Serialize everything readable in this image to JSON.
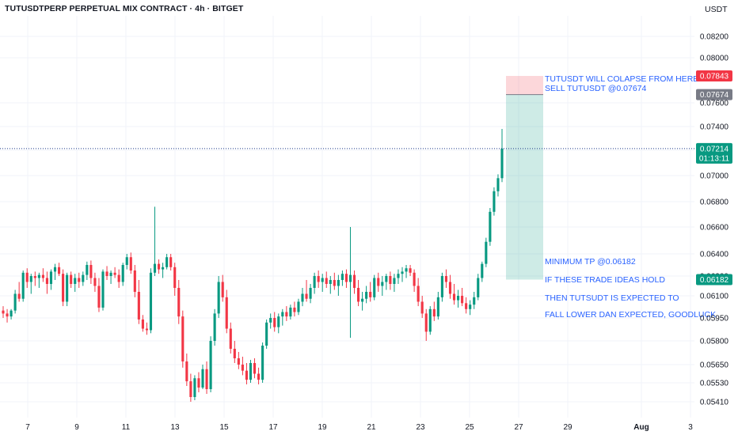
{
  "header": {
    "title": "TUTUSDTPERP PERPETUAL MIX CONTRACT · 4h · BITGET",
    "quote_unit": "USDT"
  },
  "chart_data": {
    "type": "candlestick",
    "symbol": "TUTUSDTPERP",
    "exchange": "BITGET",
    "timeframe": "4h",
    "y_axis_ticks": [
      "0.08200",
      "0.08000",
      "0.07600",
      "0.07400",
      "0.07200",
      "0.07000",
      "0.06800",
      "0.06600",
      "0.06400",
      "0.06200",
      "0.06100",
      "0.05950",
      "0.05800",
      "0.05650",
      "0.05530",
      "0.05410"
    ],
    "x_axis_ticks": [
      "7",
      "9",
      "11",
      "13",
      "15",
      "17",
      "19",
      "21",
      "23",
      "25",
      "27",
      "29",
      "Aug",
      "3"
    ],
    "current_price": "0.07214",
    "countdown": "01:13:11",
    "price_labels": [
      {
        "value": "0.07843",
        "color": "#f23645"
      },
      {
        "value": "0.07674",
        "color": "#787b86"
      },
      {
        "value": "0.07214",
        "color": "#089981"
      },
      {
        "value": "0.06182",
        "color": "#089981"
      }
    ],
    "position": {
      "side": "short",
      "entry": 0.07674,
      "stop": 0.07843,
      "target": 0.06182
    },
    "annotations": [
      "TUTUSDT WILL COLAPSE FROM HERE",
      "SELL TUTUSDT @0.07674",
      "MINIMUM TP @0.06182",
      "IF THESE TRADE IDEAS HOLD",
      "THEN TUTSUDT IS EXPECTED TO",
      "FALL LOWER DAN EXPECTED, GOODLUCK"
    ],
    "candles": [
      [
        0.06,
        0.0603,
        0.0595,
        0.0598
      ],
      [
        0.0598,
        0.0601,
        0.0592,
        0.0596
      ],
      [
        0.0596,
        0.0601,
        0.0594,
        0.06
      ],
      [
        0.06,
        0.0613,
        0.0598,
        0.0611
      ],
      [
        0.0611,
        0.0617,
        0.0606,
        0.0608
      ],
      [
        0.0608,
        0.0625,
        0.0606,
        0.0623
      ],
      [
        0.0623,
        0.0627,
        0.0614,
        0.0617
      ],
      [
        0.0617,
        0.0622,
        0.0611,
        0.062
      ],
      [
        0.062,
        0.0624,
        0.0615,
        0.0619
      ],
      [
        0.0619,
        0.0623,
        0.0614,
        0.0621
      ],
      [
        0.0621,
        0.0627,
        0.0617,
        0.0619
      ],
      [
        0.0619,
        0.0624,
        0.0611,
        0.0616
      ],
      [
        0.0616,
        0.0626,
        0.0613,
        0.0624
      ],
      [
        0.0624,
        0.0631,
        0.0618,
        0.0628
      ],
      [
        0.0628,
        0.0632,
        0.062,
        0.0622
      ],
      [
        0.0622,
        0.0626,
        0.0603,
        0.0606
      ],
      [
        0.0606,
        0.0623,
        0.0603,
        0.0621
      ],
      [
        0.0621,
        0.0624,
        0.0614,
        0.0616
      ],
      [
        0.0616,
        0.0622,
        0.0612,
        0.0619
      ],
      [
        0.0619,
        0.0623,
        0.0614,
        0.0617
      ],
      [
        0.0617,
        0.0624,
        0.0615,
        0.0621
      ],
      [
        0.0621,
        0.0633,
        0.0618,
        0.063
      ],
      [
        0.063,
        0.0634,
        0.0616,
        0.0619
      ],
      [
        0.0619,
        0.0623,
        0.0612,
        0.0615
      ],
      [
        0.0615,
        0.0619,
        0.0599,
        0.0602
      ],
      [
        0.0602,
        0.0626,
        0.06,
        0.0624
      ],
      [
        0.0624,
        0.0629,
        0.0618,
        0.062
      ],
      [
        0.062,
        0.0625,
        0.0616,
        0.0623
      ],
      [
        0.0623,
        0.0628,
        0.0619,
        0.0621
      ],
      [
        0.0621,
        0.0626,
        0.0614,
        0.0617
      ],
      [
        0.0617,
        0.0632,
        0.0615,
        0.063
      ],
      [
        0.063,
        0.064,
        0.0626,
        0.0637
      ],
      [
        0.0637,
        0.0641,
        0.0622,
        0.0625
      ],
      [
        0.0625,
        0.063,
        0.0609,
        0.0612
      ],
      [
        0.0612,
        0.0618,
        0.0591,
        0.0594
      ],
      [
        0.0594,
        0.0597,
        0.0586,
        0.0588
      ],
      [
        0.0588,
        0.0592,
        0.0584,
        0.0587
      ],
      [
        0.0587,
        0.0627,
        0.0585,
        0.0623
      ],
      [
        0.0623,
        0.0676,
        0.062,
        0.0631
      ],
      [
        0.0631,
        0.0635,
        0.0622,
        0.0626
      ],
      [
        0.0626,
        0.0632,
        0.0619,
        0.0628
      ],
      [
        0.0628,
        0.064,
        0.0626,
        0.0637
      ],
      [
        0.0637,
        0.064,
        0.0625,
        0.0628
      ],
      [
        0.0628,
        0.0632,
        0.061,
        0.0614
      ],
      [
        0.0614,
        0.0618,
        0.0591,
        0.0596
      ],
      [
        0.0596,
        0.06,
        0.0563,
        0.0567
      ],
      [
        0.0567,
        0.0572,
        0.0551,
        0.0554
      ],
      [
        0.0554,
        0.0559,
        0.0541,
        0.0544
      ],
      [
        0.0544,
        0.0558,
        0.0542,
        0.0556
      ],
      [
        0.0556,
        0.056,
        0.0547,
        0.055
      ],
      [
        0.055,
        0.0565,
        0.0549,
        0.0562
      ],
      [
        0.0562,
        0.0567,
        0.0546,
        0.0549
      ],
      [
        0.0549,
        0.0583,
        0.0547,
        0.058
      ],
      [
        0.058,
        0.0601,
        0.0577,
        0.0598
      ],
      [
        0.0598,
        0.062,
        0.0595,
        0.0617
      ],
      [
        0.0617,
        0.0621,
        0.0606,
        0.0609
      ],
      [
        0.0609,
        0.0613,
        0.0585,
        0.0588
      ],
      [
        0.0588,
        0.0592,
        0.0572,
        0.0575
      ],
      [
        0.0575,
        0.058,
        0.0566,
        0.0569
      ],
      [
        0.0569,
        0.0573,
        0.0562,
        0.0565
      ],
      [
        0.0565,
        0.057,
        0.0558,
        0.0561
      ],
      [
        0.0561,
        0.0566,
        0.0552,
        0.0555
      ],
      [
        0.0555,
        0.0568,
        0.0553,
        0.0566
      ],
      [
        0.0566,
        0.0569,
        0.0556,
        0.0559
      ],
      [
        0.0559,
        0.0563,
        0.0552,
        0.0555
      ],
      [
        0.0555,
        0.0579,
        0.0553,
        0.0577
      ],
      [
        0.0577,
        0.0594,
        0.0575,
        0.0592
      ],
      [
        0.0592,
        0.0598,
        0.0588,
        0.0595
      ],
      [
        0.0595,
        0.0599,
        0.0586,
        0.0589
      ],
      [
        0.0589,
        0.0598,
        0.0585,
        0.0596
      ],
      [
        0.0596,
        0.0601,
        0.059,
        0.0599
      ],
      [
        0.0599,
        0.0603,
        0.0593,
        0.0596
      ],
      [
        0.0596,
        0.0604,
        0.0594,
        0.0602
      ],
      [
        0.0602,
        0.0606,
        0.0596,
        0.0599
      ],
      [
        0.0599,
        0.0608,
        0.0597,
        0.0606
      ],
      [
        0.0606,
        0.0614,
        0.0603,
        0.0611
      ],
      [
        0.0611,
        0.0618,
        0.0606,
        0.0608
      ],
      [
        0.0608,
        0.0616,
        0.0605,
        0.0614
      ],
      [
        0.0614,
        0.0623,
        0.0611,
        0.062
      ],
      [
        0.062,
        0.0625,
        0.0614,
        0.0617
      ],
      [
        0.0617,
        0.0622,
        0.0612,
        0.0619
      ],
      [
        0.0619,
        0.0624,
        0.0614,
        0.0616
      ],
      [
        0.0616,
        0.062,
        0.0611,
        0.0618
      ],
      [
        0.0618,
        0.0623,
        0.0613,
        0.0615
      ],
      [
        0.0615,
        0.0621,
        0.061,
        0.0618
      ],
      [
        0.0618,
        0.0625,
        0.0615,
        0.0622
      ],
      [
        0.0622,
        0.0626,
        0.0614,
        0.0617
      ],
      [
        0.0617,
        0.066,
        0.0582,
        0.0621
      ],
      [
        0.0621,
        0.0625,
        0.0611,
        0.0614
      ],
      [
        0.0614,
        0.0618,
        0.0603,
        0.0606
      ],
      [
        0.0606,
        0.0612,
        0.06,
        0.0608
      ],
      [
        0.0608,
        0.0615,
        0.0605,
        0.0612
      ],
      [
        0.0612,
        0.0617,
        0.0606,
        0.0609
      ],
      [
        0.0609,
        0.0621,
        0.0607,
        0.0619
      ],
      [
        0.0619,
        0.0623,
        0.0612,
        0.0615
      ],
      [
        0.0615,
        0.062,
        0.061,
        0.0617
      ],
      [
        0.0617,
        0.0622,
        0.0613,
        0.062
      ],
      [
        0.062,
        0.0624,
        0.0613,
        0.0616
      ],
      [
        0.0616,
        0.0622,
        0.0612,
        0.0619
      ],
      [
        0.0619,
        0.0626,
        0.0616,
        0.0622
      ],
      [
        0.0622,
        0.0628,
        0.0617,
        0.0624
      ],
      [
        0.0624,
        0.063,
        0.0619,
        0.0627
      ],
      [
        0.0627,
        0.063,
        0.062,
        0.0623
      ],
      [
        0.0623,
        0.0626,
        0.0612,
        0.0615
      ],
      [
        0.0615,
        0.0619,
        0.0603,
        0.0606
      ],
      [
        0.0606,
        0.061,
        0.0595,
        0.0598
      ],
      [
        0.0598,
        0.0601,
        0.058,
        0.0586
      ],
      [
        0.0586,
        0.0603,
        0.0584,
        0.0601
      ],
      [
        0.0601,
        0.0606,
        0.0593,
        0.0596
      ],
      [
        0.0596,
        0.0612,
        0.0594,
        0.0609
      ],
      [
        0.0609,
        0.0623,
        0.0606,
        0.062
      ],
      [
        0.062,
        0.0626,
        0.0614,
        0.0617
      ],
      [
        0.0617,
        0.0621,
        0.0608,
        0.0611
      ],
      [
        0.0611,
        0.0616,
        0.0604,
        0.0607
      ],
      [
        0.0607,
        0.0613,
        0.0602,
        0.061
      ],
      [
        0.061,
        0.0614,
        0.0603,
        0.0605
      ],
      [
        0.0605,
        0.0609,
        0.0598,
        0.0601
      ],
      [
        0.0601,
        0.0607,
        0.0597,
        0.0604
      ],
      [
        0.0604,
        0.0612,
        0.0601,
        0.0609
      ],
      [
        0.0609,
        0.0622,
        0.0607,
        0.0619
      ],
      [
        0.0619,
        0.0633,
        0.0617,
        0.0631
      ],
      [
        0.0631,
        0.0652,
        0.0628,
        0.0649
      ],
      [
        0.0649,
        0.0675,
        0.0646,
        0.0672
      ],
      [
        0.0672,
        0.0691,
        0.0669,
        0.0688
      ],
      [
        0.0688,
        0.0701,
        0.0684,
        0.0698
      ],
      [
        0.0698,
        0.0738,
        0.0695,
        0.07214
      ]
    ]
  }
}
